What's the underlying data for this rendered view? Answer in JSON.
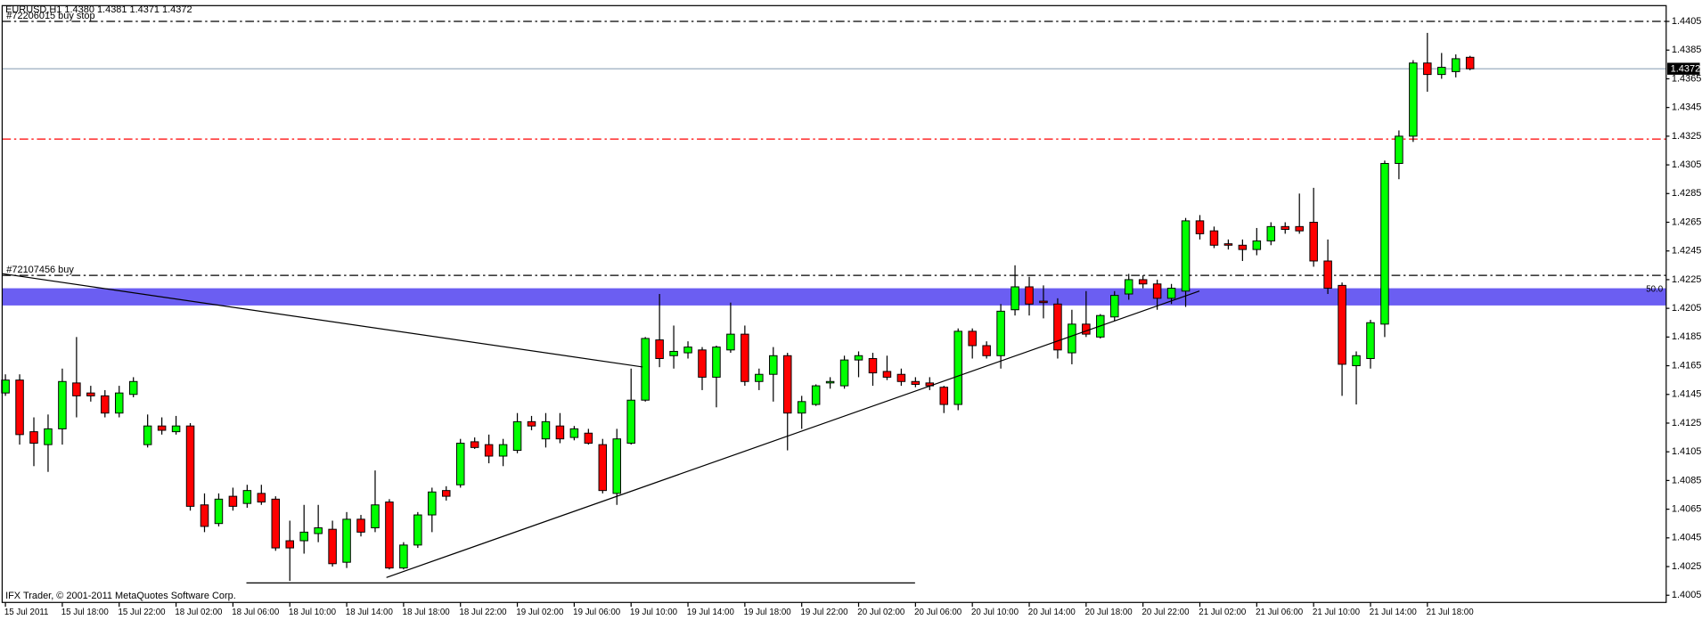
{
  "chart_data": {
    "type": "candlestick",
    "header": "EURUSD,H1  1.4380 1.4381 1.4371 1.4372",
    "footer": "IFX Trader, © 2001-2011 MetaQuotes Software Corp.",
    "categories": [
      "15 Jul 2011",
      null,
      null,
      null,
      "15 Jul 18:00",
      null,
      null,
      null,
      "15 Jul 22:00",
      null,
      null,
      null,
      "18 Jul 02:00",
      null,
      null,
      null,
      "18 Jul 06:00",
      null,
      null,
      null,
      "18 Jul 10:00",
      null,
      null,
      null,
      "18 Jul 14:00",
      null,
      null,
      null,
      "18 Jul 18:00",
      null,
      null,
      null,
      "18 Jul 22:00",
      null,
      null,
      null,
      "19 Jul 02:00",
      null,
      null,
      null,
      "19 Jul 06:00",
      null,
      null,
      null,
      "19 Jul 10:00",
      null,
      null,
      null,
      "19 Jul 14:00",
      null,
      null,
      null,
      "19 Jul 18:00",
      null,
      null,
      null,
      "19 Jul 22:00",
      null,
      null,
      null,
      "20 Jul 02:00",
      null,
      null,
      null,
      "20 Jul 06:00",
      null,
      null,
      null,
      "20 Jul 10:00",
      null,
      null,
      null,
      "20 Jul 14:00",
      null,
      null,
      null,
      "20 Jul 18:00",
      null,
      null,
      null,
      "20 Jul 22:00",
      null,
      null,
      null,
      "21 Jul 02:00",
      null,
      null,
      null,
      "21 Jul 06:00",
      null,
      null,
      null,
      "21 Jul 10:00",
      null,
      null,
      null,
      "21 Jul 14:00",
      null,
      null,
      null,
      "21 Jul 18:00",
      null,
      null,
      null
    ],
    "open": [
      1.4146,
      1.4155,
      1.4119,
      1.411,
      1.4121,
      1.4153,
      1.4146,
      1.4144,
      1.4132,
      1.4145,
      1.411,
      1.4123,
      1.4119,
      1.4123,
      1.4068,
      1.4055,
      1.4074,
      1.4069,
      1.4076,
      1.4072,
      1.4043,
      1.4043,
      1.4048,
      1.4051,
      1.4028,
      1.4058,
      1.4052,
      1.407,
      1.4024,
      1.404,
      1.4061,
      1.4078,
      1.4082,
      1.4112,
      1.411,
      1.4102,
      1.4106,
      1.4126,
      1.4114,
      1.4123,
      1.4115,
      1.4118,
      1.411,
      1.4076,
      1.4111,
      1.4141,
      1.4183,
      1.4172,
      1.4174,
      1.4176,
      1.4157,
      1.4176,
      1.4187,
      1.4154,
      1.4159,
      1.4172,
      1.4132,
      1.4138,
      1.4153,
      1.4151,
      1.4169,
      1.417,
      1.4161,
      1.4159,
      1.4154,
      1.4153,
      1.415,
      1.4138,
      1.4189,
      1.4179,
      1.4172,
      1.4204,
      1.422,
      1.421,
      1.4208,
      1.4174,
      1.4194,
      1.4185,
      1.4199,
      1.4215,
      1.4225,
      1.4222,
      1.4212,
      1.4217,
      1.4266,
      1.4259,
      1.425,
      1.4249,
      1.4246,
      1.4252,
      1.4262,
      1.4262,
      1.4265,
      1.4238,
      1.4221,
      1.4165,
      1.417,
      1.4194,
      1.4306,
      1.4325,
      1.4376,
      1.4368,
      1.437,
      1.438
    ],
    "high": [
      1.4159,
      1.4159,
      1.4129,
      1.4131,
      1.4163,
      1.4185,
      1.4151,
      1.4148,
      1.4151,
      1.4157,
      1.4131,
      1.4129,
      1.413,
      1.4125,
      1.4076,
      1.4076,
      1.408,
      1.4082,
      1.4082,
      1.4074,
      1.4057,
      1.4068,
      1.4068,
      1.4057,
      1.4063,
      1.4061,
      1.4092,
      1.4072,
      1.4042,
      1.4063,
      1.408,
      1.4081,
      1.4114,
      1.4115,
      1.4117,
      1.4114,
      1.4132,
      1.413,
      1.4132,
      1.4132,
      1.4123,
      1.4121,
      1.4114,
      1.4121,
      1.4163,
      1.4185,
      1.4215,
      1.4193,
      1.4182,
      1.4178,
      1.4179,
      1.4209,
      1.4193,
      1.4163,
      1.4178,
      1.4174,
      1.4144,
      1.4152,
      1.4157,
      1.4172,
      1.4175,
      1.4174,
      1.4172,
      1.4163,
      1.4157,
      1.4157,
      1.4151,
      1.4191,
      1.4191,
      1.4182,
      1.4208,
      1.4235,
      1.4227,
      1.4221,
      1.4212,
      1.4204,
      1.4217,
      1.4201,
      1.4217,
      1.4229,
      1.4228,
      1.4225,
      1.4222,
      1.4268,
      1.427,
      1.4262,
      1.4253,
      1.4253,
      1.4261,
      1.4265,
      1.4265,
      1.4285,
      1.4289,
      1.4253,
      1.4223,
      1.4175,
      1.4197,
      1.4308,
      1.4329,
      1.4378,
      1.4397,
      1.4383,
      1.4382,
      1.4381
    ],
    "low": [
      1.4144,
      1.411,
      1.4095,
      1.4091,
      1.411,
      1.4129,
      1.414,
      1.4129,
      1.4129,
      1.4143,
      1.4108,
      1.4117,
      1.4117,
      1.4064,
      1.4049,
      1.4053,
      1.4064,
      1.4066,
      1.4068,
      1.4036,
      1.4015,
      1.4034,
      1.4042,
      1.4025,
      1.4024,
      1.4046,
      1.4049,
      1.4023,
      1.4023,
      1.4038,
      1.4049,
      1.4071,
      1.408,
      1.4107,
      1.4097,
      1.4095,
      1.4104,
      1.412,
      1.4108,
      1.4111,
      1.4113,
      1.411,
      1.4076,
      1.4068,
      1.411,
      1.414,
      1.4164,
      1.4163,
      1.417,
      1.4148,
      1.4136,
      1.4174,
      1.4151,
      1.4148,
      1.414,
      1.4106,
      1.4121,
      1.4137,
      1.4149,
      1.4149,
      1.4157,
      1.4151,
      1.4155,
      1.4151,
      1.415,
      1.4148,
      1.4132,
      1.4134,
      1.417,
      1.417,
      1.4163,
      1.42,
      1.42,
      1.4198,
      1.417,
      1.4166,
      1.4185,
      1.4184,
      1.4196,
      1.4211,
      1.4219,
      1.4204,
      1.4208,
      1.4206,
      1.4253,
      1.4247,
      1.4246,
      1.4238,
      1.4242,
      1.4249,
      1.4257,
      1.4257,
      1.4234,
      1.4215,
      1.4144,
      1.4138,
      1.4163,
      1.4185,
      1.4295,
      1.4321,
      1.4356,
      1.4365,
      1.4366,
      1.4371
    ],
    "close": [
      1.4155,
      1.4117,
      1.4111,
      1.4121,
      1.4154,
      1.4144,
      1.4144,
      1.4132,
      1.4146,
      1.4154,
      1.4123,
      1.412,
      1.4123,
      1.4067,
      1.4053,
      1.4072,
      1.4067,
      1.4078,
      1.407,
      1.4038,
      1.4038,
      1.4049,
      1.4052,
      1.4027,
      1.4058,
      1.4049,
      1.4068,
      1.4024,
      1.404,
      1.4061,
      1.4077,
      1.4074,
      1.4111,
      1.4108,
      1.4102,
      1.411,
      1.4126,
      1.4123,
      1.4126,
      1.4114,
      1.4121,
      1.4111,
      1.4078,
      1.4114,
      1.4141,
      1.4184,
      1.417,
      1.4175,
      1.4178,
      1.4157,
      1.4178,
      1.4187,
      1.4154,
      1.4159,
      1.4172,
      1.4132,
      1.414,
      1.4151,
      1.4154,
      1.4169,
      1.4172,
      1.416,
      1.4157,
      1.4154,
      1.4152,
      1.4151,
      1.4138,
      1.4189,
      1.4179,
      1.4172,
      1.4203,
      1.422,
      1.4208,
      1.4209,
      1.4176,
      1.4194,
      1.4187,
      1.42,
      1.4214,
      1.4225,
      1.4222,
      1.4212,
      1.4219,
      1.4266,
      1.4257,
      1.4249,
      1.4249,
      1.4246,
      1.4252,
      1.4262,
      1.426,
      1.4259,
      1.4238,
      1.4219,
      1.4166,
      1.4172,
      1.4195,
      1.4306,
      1.4325,
      1.4376,
      1.4368,
      1.4373,
      1.4379,
      1.4372
    ],
    "up_color": "#00ff00",
    "down_color": "#ff0000",
    "current_price": 1.4372,
    "levels": [
      {
        "label": "#72206015 buy stop",
        "value": 1.4405,
        "color": "#000000",
        "style": "dashdot"
      },
      {
        "value": 1.4323,
        "color": "#ff0000",
        "style": "dashdot"
      },
      {
        "label": "#72107456 buy",
        "value": 1.4228,
        "color": "#000000",
        "style": "dashdot"
      }
    ],
    "band": {
      "from": 1.4207,
      "to": 1.4219,
      "label": "50.0",
      "color": "#6b5ef2"
    },
    "ylim": [
      1.4,
      1.4416
    ],
    "yticks": [
      1.4405,
      1.4385,
      1.4365,
      1.4345,
      1.4325,
      1.4305,
      1.4285,
      1.4265,
      1.4245,
      1.4225,
      1.4205,
      1.4185,
      1.4165,
      1.4145,
      1.4125,
      1.4105,
      1.4085,
      1.4065,
      1.4045,
      1.4025,
      1.4005
    ],
    "grid": false
  }
}
